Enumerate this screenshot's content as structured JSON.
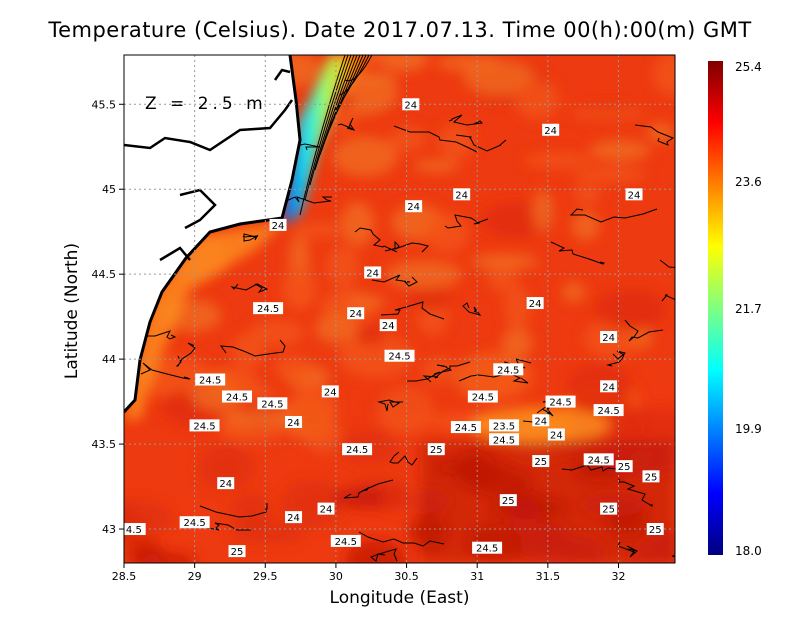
{
  "title": "Temperature (Celsius). Date 2017.07.13. Time 00(h):00(m)  GMT",
  "depth_label": "Z = 2.5 m",
  "chart_data": {
    "type": "contour-map",
    "title": "Temperature (Celsius). Date 2017.07.13. Time 00(h):00(m)  GMT",
    "xlabel": "Longitude (East)",
    "ylabel": "Latitude (North)",
    "xlim": [
      28.5,
      32.4
    ],
    "ylim": [
      42.8,
      45.79
    ],
    "x_ticks": [
      "28.5",
      "29",
      "29.5",
      "30",
      "30.5",
      "31",
      "31.5",
      "32"
    ],
    "y_ticks": [
      "43",
      "43.5",
      "44",
      "44.5",
      "45",
      "45.5"
    ],
    "grid": true,
    "colorbar": {
      "min": 18.0,
      "max": 25.4,
      "ticks": [
        "25.4",
        "23.6",
        "21.7",
        "19.9",
        "18.0"
      ],
      "colormap": [
        "#00007f",
        "#0000ff",
        "#0080ff",
        "#00ffff",
        "#80ff80",
        "#ffff00",
        "#ff8000",
        "#ff0000",
        "#7f0000"
      ],
      "placement": "right"
    },
    "contour_labels": [
      {
        "text": "24",
        "lon": 30.53,
        "lat": 45.5
      },
      {
        "text": "24",
        "lon": 31.52,
        "lat": 45.35
      },
      {
        "text": "24",
        "lon": 30.89,
        "lat": 44.97
      },
      {
        "text": "24",
        "lon": 30.55,
        "lat": 44.9
      },
      {
        "text": "24",
        "lon": 32.11,
        "lat": 44.97
      },
      {
        "text": "24",
        "lon": 29.59,
        "lat": 44.79
      },
      {
        "text": "24",
        "lon": 30.26,
        "lat": 44.51
      },
      {
        "text": "24.5",
        "lon": 29.52,
        "lat": 44.3
      },
      {
        "text": "24",
        "lon": 30.14,
        "lat": 44.27
      },
      {
        "text": "24",
        "lon": 30.37,
        "lat": 44.2
      },
      {
        "text": "24",
        "lon": 31.41,
        "lat": 44.33
      },
      {
        "text": "24",
        "lon": 31.93,
        "lat": 44.13
      },
      {
        "text": "24.5",
        "lon": 30.45,
        "lat": 44.02
      },
      {
        "text": "24.5",
        "lon": 31.22,
        "lat": 43.94
      },
      {
        "text": "24.5",
        "lon": 29.11,
        "lat": 43.88
      },
      {
        "text": "24.5",
        "lon": 29.3,
        "lat": 43.78
      },
      {
        "text": "24",
        "lon": 29.96,
        "lat": 43.81
      },
      {
        "text": "24",
        "lon": 31.93,
        "lat": 43.84
      },
      {
        "text": "24.5",
        "lon": 29.55,
        "lat": 43.74
      },
      {
        "text": "24.5",
        "lon": 31.04,
        "lat": 43.78
      },
      {
        "text": "24.5",
        "lon": 31.59,
        "lat": 43.75
      },
      {
        "text": "24.5",
        "lon": 31.93,
        "lat": 43.7
      },
      {
        "text": "24",
        "lon": 29.7,
        "lat": 43.63
      },
      {
        "text": "24.5",
        "lon": 29.07,
        "lat": 43.61
      },
      {
        "text": "24",
        "lon": 31.45,
        "lat": 43.64
      },
      {
        "text": "23.5",
        "lon": 31.19,
        "lat": 43.61
      },
      {
        "text": "24.5",
        "lon": 30.92,
        "lat": 43.6
      },
      {
        "text": "24.5",
        "lon": 31.19,
        "lat": 43.54
      },
      {
        "text": "24",
        "lon": 31.56,
        "lat": 43.58
      },
      {
        "text": "24.5",
        "lon": 30.15,
        "lat": 43.47
      },
      {
        "text": "25",
        "lon": 30.71,
        "lat": 43.47
      },
      {
        "text": "25",
        "lon": 31.45,
        "lat": 43.4
      },
      {
        "text": "24.5",
        "lon": 31.86,
        "lat": 43.41
      },
      {
        "text": "25",
        "lon": 32.04,
        "lat": 43.37
      },
      {
        "text": "25",
        "lon": 32.23,
        "lat": 43.31
      },
      {
        "text": "24",
        "lon": 29.22,
        "lat": 43.27
      },
      {
        "text": "25",
        "lon": 31.22,
        "lat": 43.17
      },
      {
        "text": "24",
        "lon": 29.93,
        "lat": 43.12
      },
      {
        "text": "25",
        "lon": 31.93,
        "lat": 43.12
      },
      {
        "text": "24",
        "lon": 29.7,
        "lat": 43.07
      },
      {
        "text": "24.5",
        "lon": 29.0,
        "lat": 43.04
      },
      {
        "text": "4.5",
        "lon": 28.57,
        "lat": 43.0
      },
      {
        "text": "25",
        "lon": 32.26,
        "lat": 43.0
      },
      {
        "text": "24.5",
        "lon": 30.07,
        "lat": 42.93
      },
      {
        "text": "25",
        "lon": 29.3,
        "lat": 42.87
      },
      {
        "text": "24.5",
        "lon": 31.07,
        "lat": 42.89
      }
    ]
  }
}
